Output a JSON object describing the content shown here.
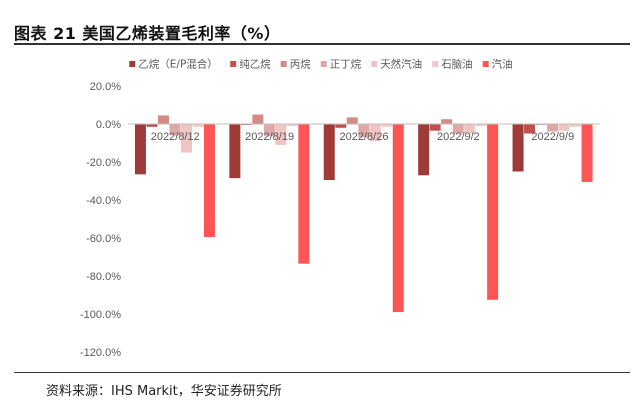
{
  "figure": {
    "title": "图表 21 美国乙烯装置毛利率（%）",
    "source": "资料来源：IHS Markit，华安证券研究所"
  },
  "chart_data": {
    "type": "bar",
    "title": "",
    "xlabel": "",
    "ylabel": "",
    "ylim": [
      -120,
      20
    ],
    "yticks": [
      "20.0%",
      "0.0%",
      "-20.0%",
      "-40.0%",
      "-60.0%",
      "-80.0%",
      "-100.0%",
      "-120.0%"
    ],
    "ytick_values": [
      20,
      0,
      -20,
      -40,
      -60,
      -80,
      -100,
      -120
    ],
    "grid": false,
    "legend_position": "top",
    "categories": [
      "2022/8/12",
      "2022/8/19",
      "2022/8/26",
      "2022/9/2",
      "2022/9/9"
    ],
    "series": [
      {
        "name": "乙烷（E/P混合）",
        "color": "#9e3a38",
        "values": [
          -26.5,
          -28.5,
          -29.5,
          -27.0,
          -25.0
        ]
      },
      {
        "name": "纯乙烷",
        "color": "#c0504d",
        "values": [
          -1.5,
          -0.5,
          -2.0,
          -3.5,
          -5.0
        ]
      },
      {
        "name": "丙烷",
        "color": "#d48a87",
        "values": [
          4.5,
          5.0,
          3.5,
          2.5,
          -0.5
        ]
      },
      {
        "name": "正丁烷",
        "color": "#dfa8a6",
        "values": [
          -6.0,
          -6.5,
          -7.0,
          -5.0,
          -4.0
        ]
      },
      {
        "name": "天然汽油",
        "color": "#f0c4c2",
        "values": [
          -15.0,
          -11.0,
          -9.0,
          -5.0,
          -3.5
        ]
      },
      {
        "name": "石脑油",
        "color": "#f4c8c6",
        "values": [
          -1.5,
          -1.0,
          -1.5,
          -1.0,
          -1.5
        ]
      },
      {
        "name": "汽油",
        "color": "#ff5555",
        "values": [
          -59.5,
          -73.5,
          -99.0,
          -92.5,
          -30.5
        ]
      }
    ]
  }
}
